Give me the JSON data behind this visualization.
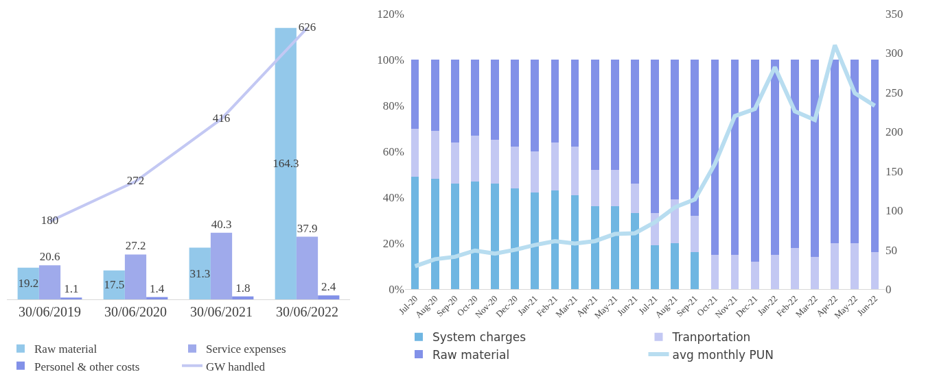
{
  "chart_data": [
    {
      "type": "bar",
      "categories": [
        "30/06/2019",
        "30/06/2020",
        "30/06/2021",
        "30/06/2022"
      ],
      "series": [
        {
          "name": "Raw material",
          "color": "#93c8ea",
          "values": [
            19.2,
            17.5,
            31.3,
            164.3
          ]
        },
        {
          "name": "Service expenses",
          "color": "#9faaeb",
          "values": [
            20.6,
            27.2,
            40.3,
            37.9
          ]
        },
        {
          "name": "Personel & other costs",
          "color": "#8291e8",
          "values": [
            1.1,
            1.4,
            1.8,
            2.4
          ]
        },
        {
          "name": "GW handled",
          "type": "line",
          "axis": "y2",
          "color": "#c3c8f3",
          "values": [
            180,
            272,
            416,
            626
          ]
        }
      ],
      "tick_labels": "x",
      "data_labels": true,
      "legend": "bottom"
    },
    {
      "type": "bar",
      "stacked": true,
      "categories": [
        "Jul-20",
        "Aug-20",
        "Sep-20",
        "Oct-20",
        "Nov-20",
        "Dec-20",
        "Jan-21",
        "Feb-21",
        "Mar-21",
        "Apr-21",
        "May-21",
        "Jun-21",
        "Jul-21",
        "Aug-21",
        "Sep-21",
        "Oct-21",
        "Nov-21",
        "Dec-21",
        "Jan-22",
        "Feb-22",
        "Mar-22",
        "Apr-22",
        "May-22",
        "Jun-22"
      ],
      "series": [
        {
          "name": "System charges",
          "color": "#6fb6e2",
          "values": [
            49,
            48,
            46,
            47,
            46,
            44,
            42,
            43,
            41,
            36,
            36,
            33,
            19,
            20,
            16,
            0,
            0,
            0,
            0,
            0,
            0,
            0,
            0,
            0
          ]
        },
        {
          "name": "Tranportation",
          "color": "#c3c8f3",
          "values": [
            21,
            21,
            18,
            20,
            19,
            18,
            18,
            21,
            21,
            16,
            16,
            13,
            14,
            19,
            16,
            15,
            15,
            12,
            15,
            18,
            14,
            20,
            20,
            16
          ]
        },
        {
          "name": "Raw material",
          "color": "#8291e8",
          "values": [
            30,
            31,
            36,
            33,
            35,
            38,
            40,
            36,
            38,
            48,
            48,
            54,
            67,
            61,
            68,
            85,
            85,
            88,
            85,
            82,
            86,
            80,
            80,
            84
          ]
        },
        {
          "name": "avg monthly PUN",
          "type": "line",
          "axis": "y2",
          "color": "#b8ddf0",
          "values": [
            29,
            38,
            41,
            49,
            45,
            50,
            56,
            61,
            58,
            61,
            70,
            71,
            85,
            104,
            114,
            159,
            220,
            229,
            282,
            226,
            215,
            310,
            249,
            233
          ]
        }
      ],
      "ylim": [
        0,
        120
      ],
      "yticks": [
        {
          "value": 0,
          "label": "0%"
        },
        {
          "value": 20,
          "label": "20%"
        },
        {
          "value": 40,
          "label": "40%"
        },
        {
          "value": 60,
          "label": "60%"
        },
        {
          "value": 80,
          "label": "80%"
        },
        {
          "value": 100,
          "label": "100%"
        },
        {
          "value": 120,
          "label": "120%"
        }
      ],
      "y2lim": [
        0,
        350
      ],
      "y2ticks": [
        0,
        50,
        100,
        150,
        200,
        250,
        300,
        350
      ],
      "legend": "bottom"
    }
  ]
}
